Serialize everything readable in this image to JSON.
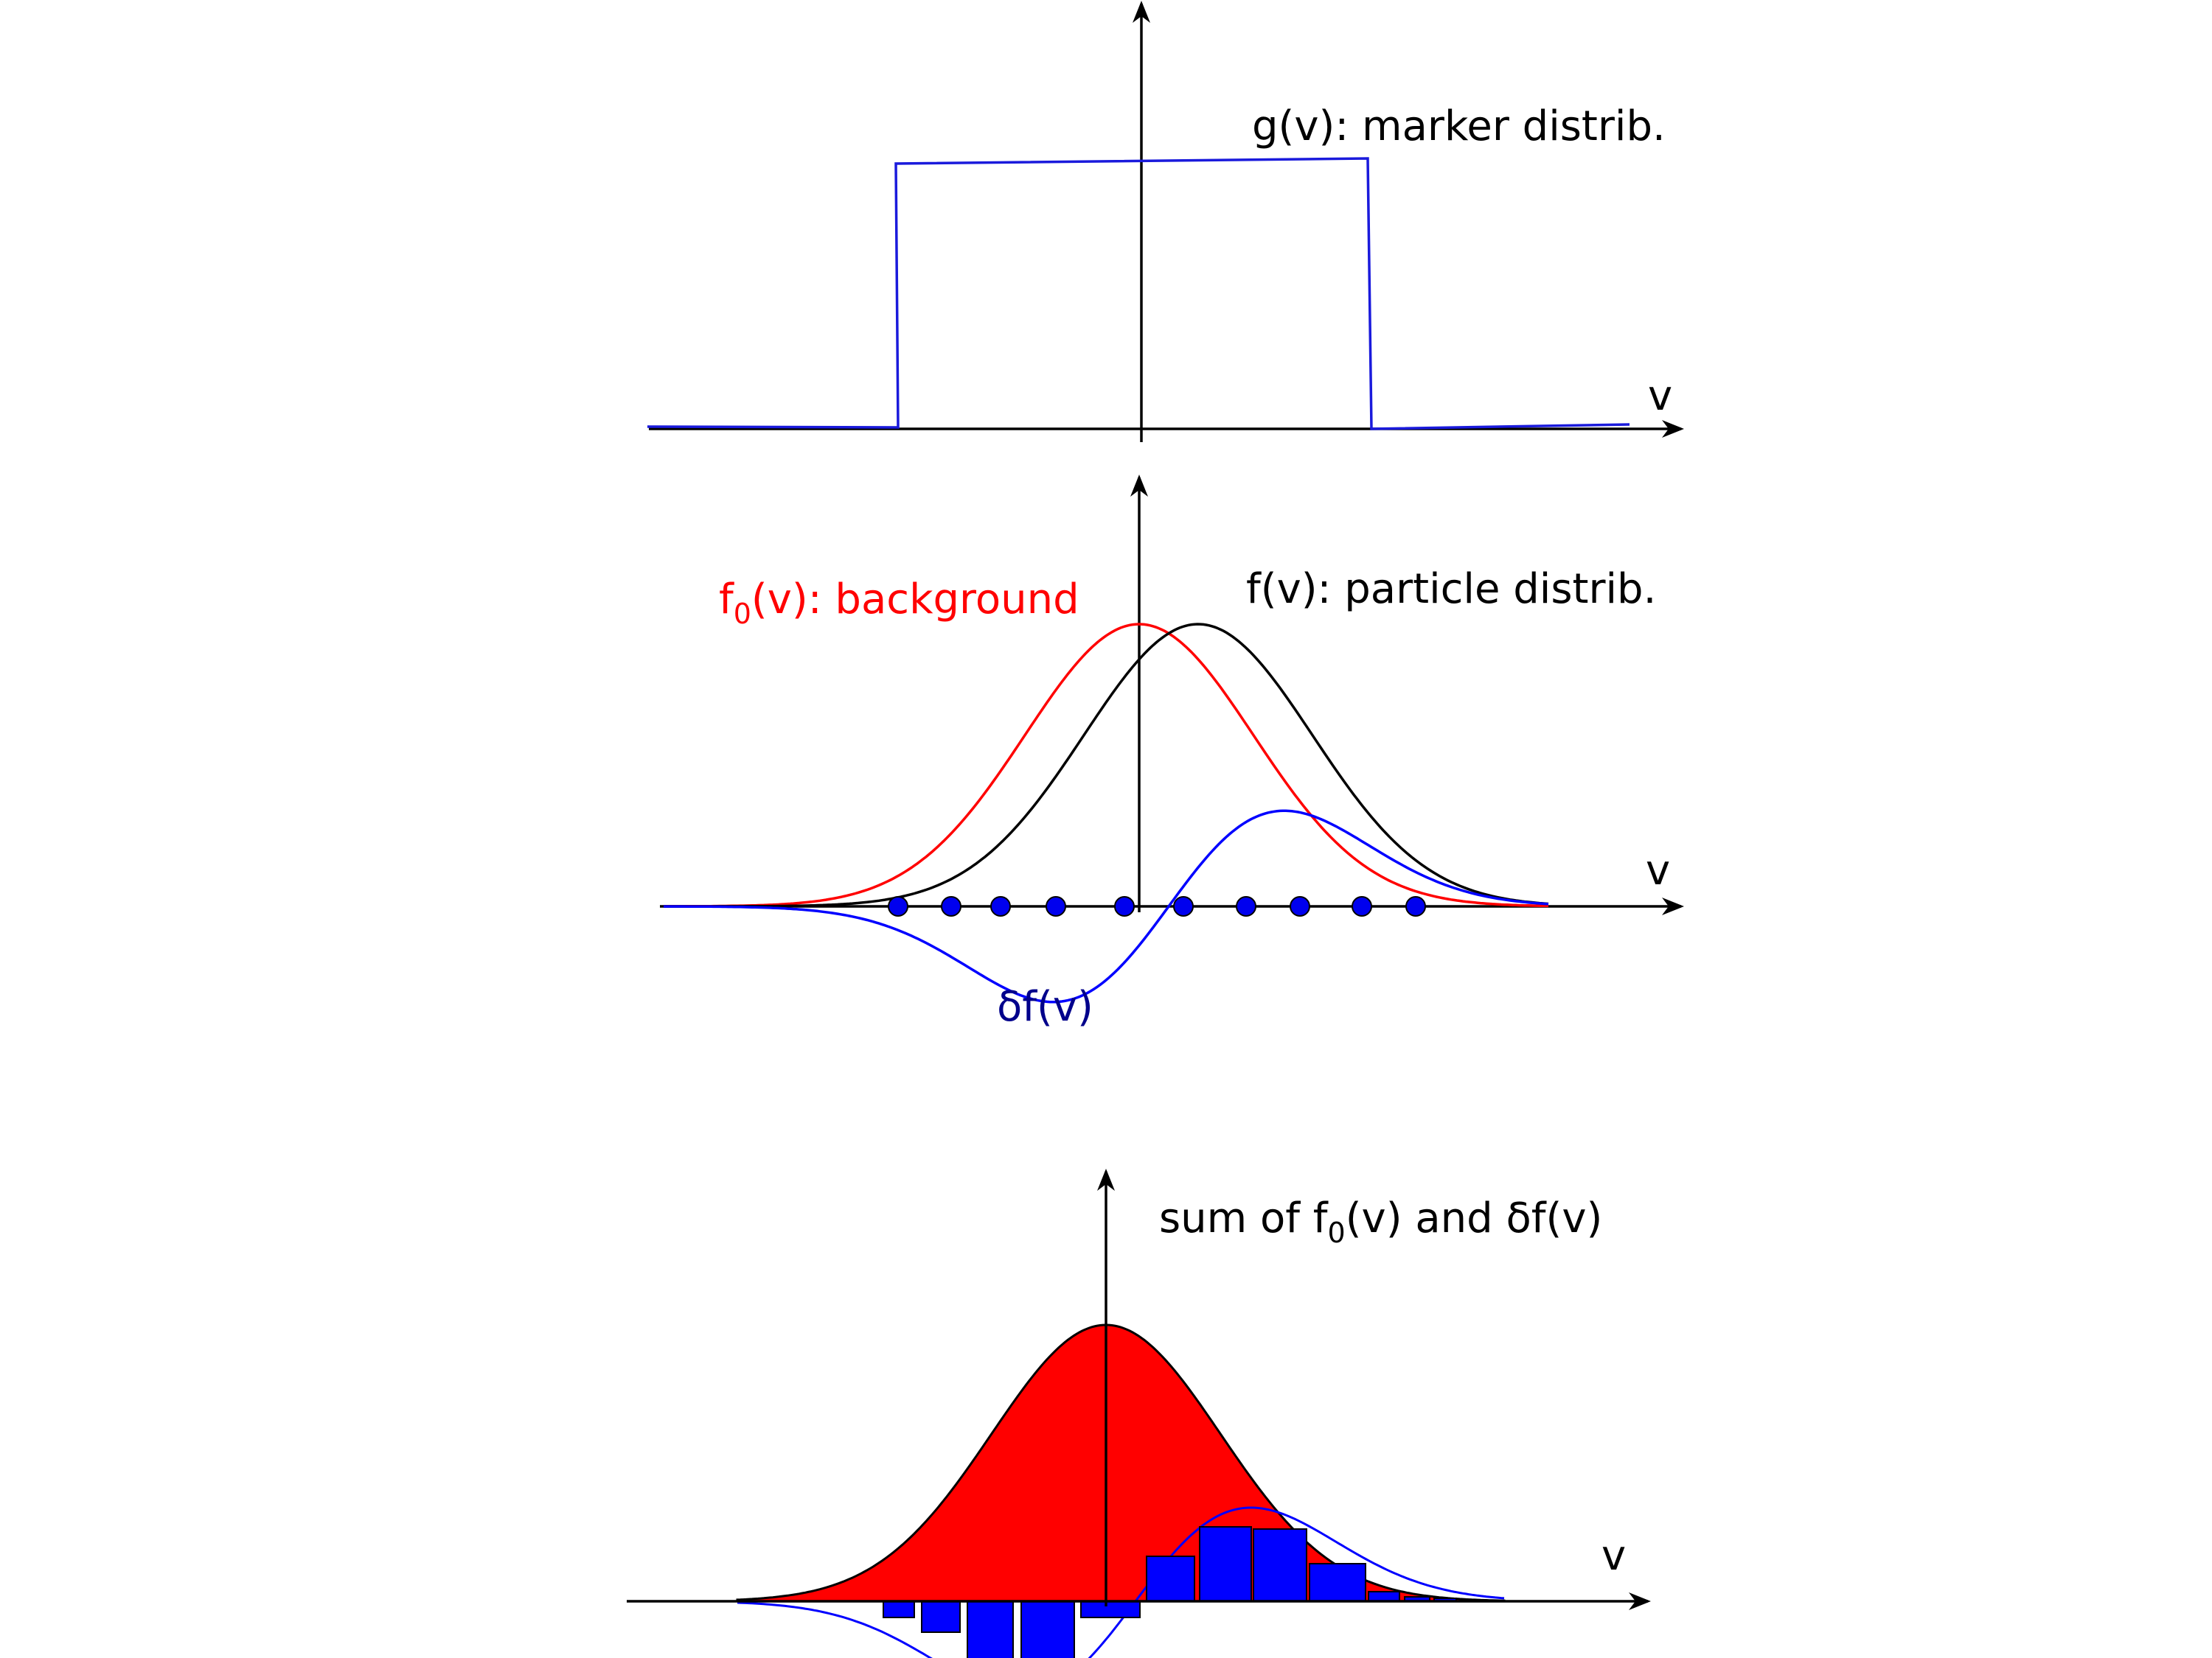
{
  "colors": {
    "axis": "#000000",
    "marker": "#1a1adc",
    "background": "#ff0000",
    "particle": "#000000",
    "delta": "#0000ff",
    "delta_label": "#00008b",
    "markers_fill": "#0000ee",
    "bars_fill": "#0000ff"
  },
  "panels": {
    "top": {
      "axis_label": "v",
      "marker_label": "g(v): marker distrib."
    },
    "middle": {
      "axis_label": "v",
      "background_label_main": "f",
      "background_label_sub": "0",
      "background_label_rest": "(v): background",
      "particle_label": "f(v): particle distrib.",
      "delta_label": "δf(v)",
      "marker_count": 10
    },
    "bottom": {
      "axis_label": "v",
      "sum_label_part1": "sum of f",
      "sum_label_sub": "0",
      "sum_label_part2": "(v) and δf(v)",
      "bar_count": 13
    }
  }
}
